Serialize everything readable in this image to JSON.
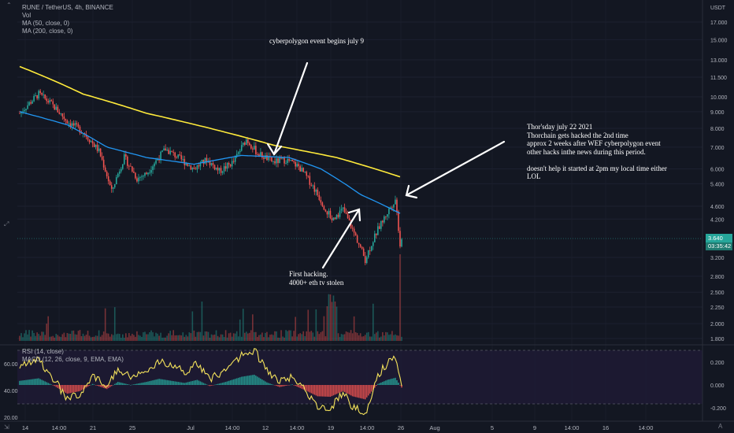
{
  "legend": {
    "symbol": "RUNE / TetherUS, 4h, BINANCE",
    "vol": "Vol",
    "ma50": "MA (50, close, 0)",
    "ma200": "MA (200, close, 0)",
    "rsi": "RSI (14, close)",
    "macd": "MACD (12, 26, close, 9, EMA, EMA)"
  },
  "annotations": {
    "cyberpolygon": "cyberpolygon event begins july 9",
    "thorsday": "Thor'sday july 22 2021\nThorchain gets hacked the 2nd time\napprox 2 weeks after WEF cyberpolygon event\nother hacks inthe news during this period.\n\ndoesn't help it started at 2pm my local time either\nLOL",
    "first_hack": "First hacking.\n4000+ eth tv stolen"
  },
  "axis": {
    "currency": "USDT",
    "last_price": "3.640",
    "countdown": "03:35:42"
  },
  "colors": {
    "background": "#131722",
    "up": "#26a69a",
    "down": "#ef5350",
    "ma50": "#2196f3",
    "ma200": "#ffeb3b",
    "rsi": "#f5e35c",
    "arrow": "#ffffff"
  },
  "chart_data": {
    "type": "candlestick",
    "price_ticks": [
      17.0,
      15.0,
      13.0,
      11.5,
      10.0,
      9.0,
      8.0,
      7.0,
      6.0,
      5.4,
      4.6,
      4.2,
      3.64,
      3.2,
      2.8,
      2.5,
      2.25,
      2.0,
      1.8
    ],
    "price_tick_labels": [
      "17.000",
      "15.000",
      "13.000",
      "11.500",
      "10.000",
      "9.000",
      "8.000",
      "7.000",
      "6.000",
      "5.400",
      "4.600",
      "4.200",
      "3.640",
      "3.200",
      "2.800",
      "2.500",
      "2.250",
      "2.000",
      "1.800"
    ],
    "x_labels": [
      "14",
      "14:00",
      "21",
      "25",
      "Jul",
      "14:00",
      "12",
      "14:00",
      "19",
      "14:00",
      "26",
      "Aug",
      "5",
      "9",
      "14:00",
      "16",
      "14:00"
    ],
    "close_keypoints": [
      {
        "t": 0,
        "v": 8.9
      },
      {
        "t": 12,
        "v": 10.2
      },
      {
        "t": 20,
        "v": 9.5
      },
      {
        "t": 30,
        "v": 8.4
      },
      {
        "t": 40,
        "v": 7.8
      },
      {
        "t": 50,
        "v": 6.8
      },
      {
        "t": 58,
        "v": 5.1
      },
      {
        "t": 66,
        "v": 6.5
      },
      {
        "t": 74,
        "v": 5.6
      },
      {
        "t": 80,
        "v": 5.8
      },
      {
        "t": 92,
        "v": 6.9
      },
      {
        "t": 100,
        "v": 6.5
      },
      {
        "t": 110,
        "v": 6.0
      },
      {
        "t": 118,
        "v": 6.4
      },
      {
        "t": 126,
        "v": 5.9
      },
      {
        "t": 135,
        "v": 6.3
      },
      {
        "t": 143,
        "v": 7.4
      },
      {
        "t": 150,
        "v": 6.7
      },
      {
        "t": 160,
        "v": 6.3
      },
      {
        "t": 168,
        "v": 6.4
      },
      {
        "t": 176,
        "v": 6.1
      },
      {
        "t": 184,
        "v": 5.4
      },
      {
        "t": 192,
        "v": 4.6
      },
      {
        "t": 197,
        "v": 4.2
      },
      {
        "t": 204,
        "v": 4.5
      },
      {
        "t": 210,
        "v": 3.9
      },
      {
        "t": 218,
        "v": 3.15
      },
      {
        "t": 226,
        "v": 3.9
      },
      {
        "t": 232,
        "v": 4.4
      },
      {
        "t": 237,
        "v": 4.85
      },
      {
        "t": 240,
        "v": 3.5
      },
      {
        "t": 241,
        "v": 3.64
      }
    ],
    "ma50_keypoints": [
      {
        "t": 0,
        "v": 9.0
      },
      {
        "t": 30,
        "v": 8.2
      },
      {
        "t": 55,
        "v": 7.0
      },
      {
        "t": 80,
        "v": 6.5
      },
      {
        "t": 110,
        "v": 6.2
      },
      {
        "t": 140,
        "v": 6.6
      },
      {
        "t": 170,
        "v": 6.5
      },
      {
        "t": 190,
        "v": 6.0
      },
      {
        "t": 215,
        "v": 5.0
      },
      {
        "t": 241,
        "v": 4.35
      }
    ],
    "ma200_keypoints": [
      {
        "t": 0,
        "v": 12.4
      },
      {
        "t": 40,
        "v": 10.2
      },
      {
        "t": 80,
        "v": 8.9
      },
      {
        "t": 120,
        "v": 8.0
      },
      {
        "t": 160,
        "v": 7.1
      },
      {
        "t": 200,
        "v": 6.5
      },
      {
        "t": 241,
        "v": 5.65
      }
    ],
    "rsi_ticks": [
      60.0,
      40.0,
      20.0
    ],
    "rsi_tick_labels": [
      "60.00",
      "40.00",
      "20.00"
    ],
    "rsi_bands": [
      70,
      30
    ],
    "rsi_keypoints": [
      {
        "t": 0,
        "v": 58
      },
      {
        "t": 12,
        "v": 63
      },
      {
        "t": 22,
        "v": 48
      },
      {
        "t": 30,
        "v": 33
      },
      {
        "t": 38,
        "v": 38
      },
      {
        "t": 46,
        "v": 52
      },
      {
        "t": 55,
        "v": 42
      },
      {
        "t": 62,
        "v": 56
      },
      {
        "t": 70,
        "v": 50
      },
      {
        "t": 80,
        "v": 56
      },
      {
        "t": 88,
        "v": 62
      },
      {
        "t": 96,
        "v": 58
      },
      {
        "t": 104,
        "v": 54
      },
      {
        "t": 112,
        "v": 60
      },
      {
        "t": 120,
        "v": 48
      },
      {
        "t": 130,
        "v": 56
      },
      {
        "t": 140,
        "v": 66
      },
      {
        "t": 148,
        "v": 70
      },
      {
        "t": 156,
        "v": 55
      },
      {
        "t": 164,
        "v": 46
      },
      {
        "t": 172,
        "v": 51
      },
      {
        "t": 180,
        "v": 40
      },
      {
        "t": 188,
        "v": 28
      },
      {
        "t": 196,
        "v": 27
      },
      {
        "t": 204,
        "v": 38
      },
      {
        "t": 210,
        "v": 28
      },
      {
        "t": 218,
        "v": 22
      },
      {
        "t": 226,
        "v": 52
      },
      {
        "t": 232,
        "v": 60
      },
      {
        "t": 237,
        "v": 64
      },
      {
        "t": 241,
        "v": 45
      }
    ],
    "macd_ticks": [
      0.2,
      0.0,
      -0.2
    ],
    "macd_tick_labels": [
      "0.200",
      "0.000",
      "-0.200"
    ]
  }
}
